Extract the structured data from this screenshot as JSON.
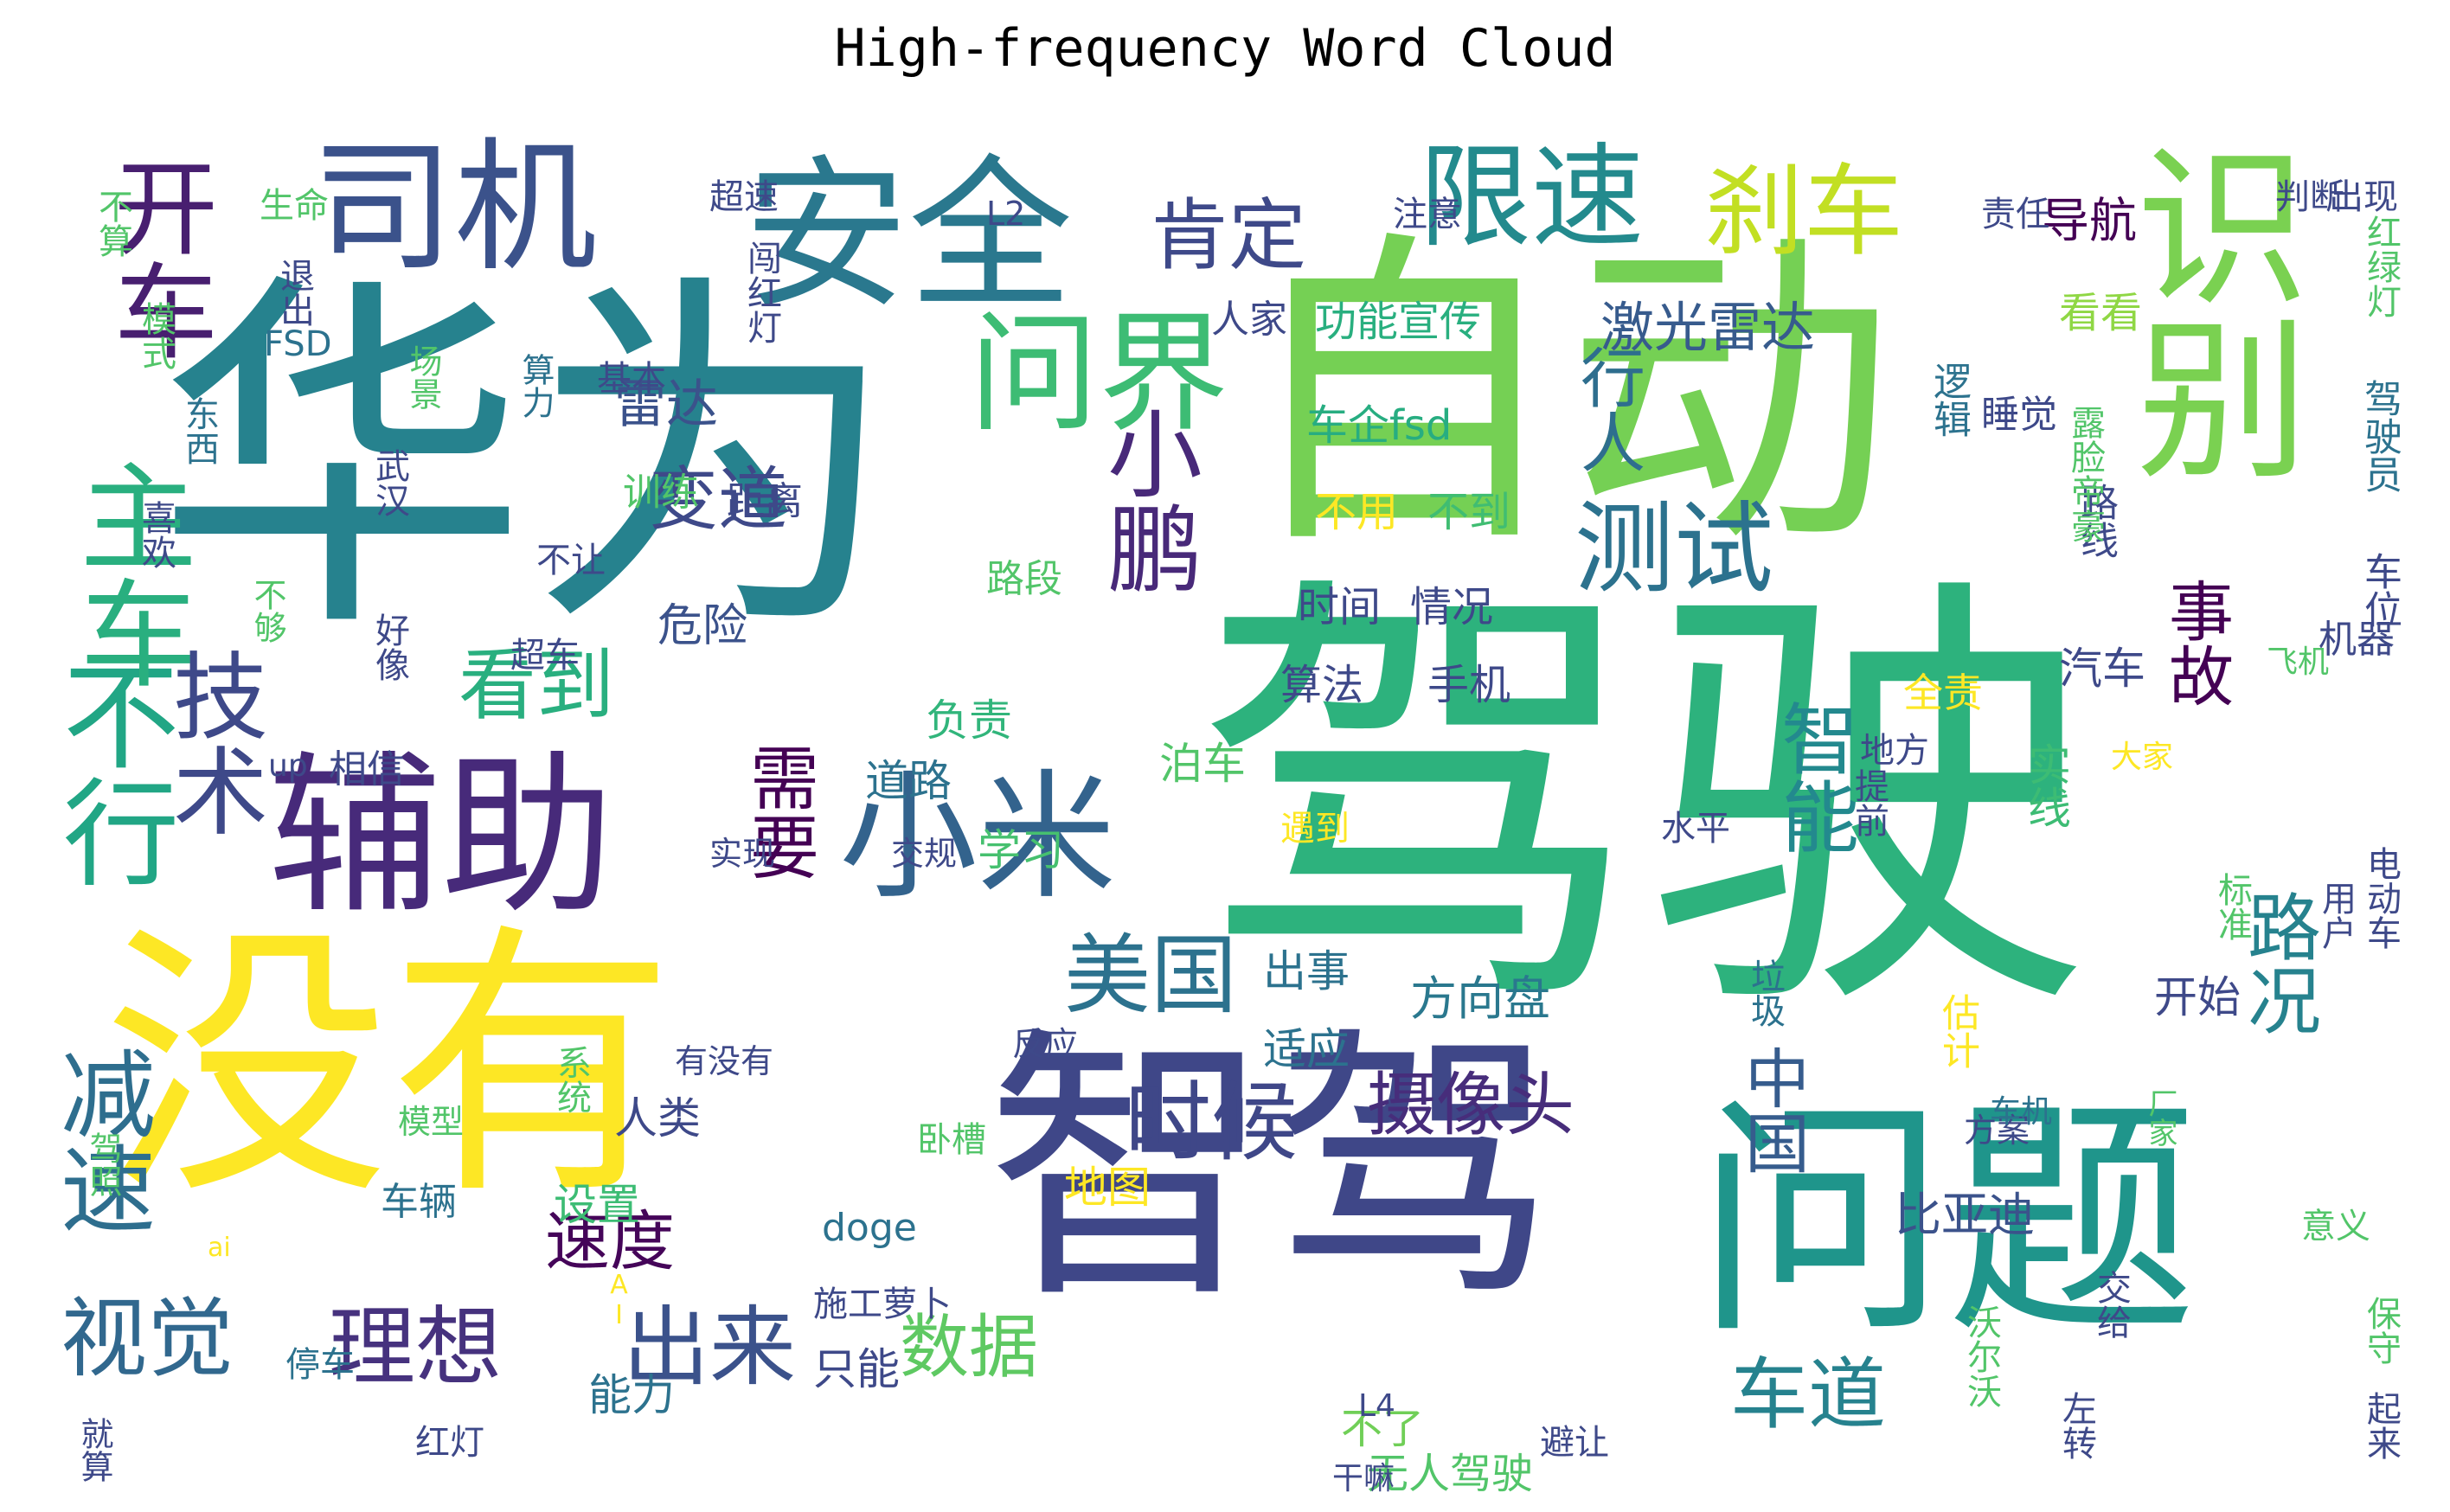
{
  "title": "High-frequency Word Cloud",
  "words": [
    {
      "text": "驾驶",
      "color": "#2db27d"
    },
    {
      "text": "华为",
      "color": "#26828e"
    },
    {
      "text": "自动",
      "color": "#75d054"
    },
    {
      "text": "智驾",
      "color": "#3f4788"
    },
    {
      "text": "没有",
      "color": "#fde725"
    },
    {
      "text": "问题",
      "color": "#1f958b"
    },
    {
      "text": "识别",
      "color": "#7ad151"
    },
    {
      "text": "辅助",
      "color": "#472a7a"
    },
    {
      "text": "安全",
      "color": "#2a788e"
    },
    {
      "text": "司机",
      "color": "#3b528b"
    },
    {
      "text": "小米",
      "color": "#33638d"
    },
    {
      "text": "不行",
      "color": "#21a685"
    },
    {
      "text": "主车",
      "color": "#29af7f"
    },
    {
      "text": "开车",
      "color": "#481f70"
    },
    {
      "text": "问界",
      "color": "#3dbc74"
    },
    {
      "text": "限速",
      "color": "#238a8d"
    },
    {
      "text": "刹车",
      "color": "#c2df23"
    },
    {
      "text": "小鹏",
      "color": "#482979"
    },
    {
      "text": "测试",
      "color": "#2c728e"
    },
    {
      "text": "技术",
      "color": "#3e4989"
    },
    {
      "text": "减速",
      "color": "#2e6e8e"
    },
    {
      "text": "视觉",
      "color": "#31688e"
    },
    {
      "text": "理想",
      "color": "#46327e"
    },
    {
      "text": "出来",
      "color": "#3b528b"
    },
    {
      "text": "美国",
      "color": "#2c728e"
    },
    {
      "text": "时候",
      "color": "#3f4788"
    },
    {
      "text": "看到",
      "color": "#29af7f"
    },
    {
      "text": "肯定",
      "color": "#3e4989"
    },
    {
      "text": "变道",
      "color": "#3e4989"
    },
    {
      "text": "智能",
      "color": "#23898e"
    },
    {
      "text": "需要",
      "color": "#440154"
    },
    {
      "text": "车道",
      "color": "#26828e"
    },
    {
      "text": "摄像头",
      "color": "#472d7b"
    },
    {
      "text": "数据",
      "color": "#5ec962"
    },
    {
      "text": "路况",
      "color": "#26828e"
    },
    {
      "text": "速度",
      "color": "#450559"
    },
    {
      "text": "中国",
      "color": "#365c8d"
    },
    {
      "text": "事故",
      "color": "#440154"
    },
    {
      "text": "行人",
      "color": "#2e6e8e"
    },
    {
      "text": "激光雷达",
      "color": "#375b8d"
    },
    {
      "text": "雷达",
      "color": "#3b528b"
    },
    {
      "text": "导航",
      "color": "#440154"
    },
    {
      "text": "功能宣传",
      "color": "#29af7f"
    },
    {
      "text": "车企fsd",
      "color": "#27ad81"
    },
    {
      "text": "不用",
      "color": "#fde725"
    },
    {
      "text": "不到",
      "color": "#40bd72"
    },
    {
      "text": "时间",
      "color": "#3e4989"
    },
    {
      "text": "情况",
      "color": "#3e4989"
    },
    {
      "text": "算法",
      "color": "#3e4989"
    },
    {
      "text": "手机",
      "color": "#3e4989"
    },
    {
      "text": "方向盘",
      "color": "#2a788e"
    },
    {
      "text": "比亚迪",
      "color": "#3b528b"
    },
    {
      "text": "危险",
      "color": "#3b528b"
    },
    {
      "text": "道路",
      "color": "#2c728e"
    },
    {
      "text": "负责",
      "color": "#31b57b"
    },
    {
      "text": "泊车",
      "color": "#52c569"
    },
    {
      "text": "学习",
      "color": "#46c06f"
    },
    {
      "text": "出事",
      "color": "#2c728e"
    },
    {
      "text": "适应",
      "color": "#2c728e"
    },
    {
      "text": "人类",
      "color": "#3e4989"
    },
    {
      "text": "设置",
      "color": "#3dbc74"
    },
    {
      "text": "能力",
      "color": "#2c728e"
    },
    {
      "text": "只能",
      "color": "#3e4989"
    },
    {
      "text": "无人驾驶",
      "color": "#52c569"
    },
    {
      "text": "不了",
      "color": "#70cf57"
    },
    {
      "text": "汽车",
      "color": "#3e4989"
    },
    {
      "text": "开始",
      "color": "#3e4989"
    },
    {
      "text": "实线",
      "color": "#3dbc74"
    },
    {
      "text": "全责",
      "color": "#fde725"
    },
    {
      "text": "看看",
      "color": "#8fd744"
    },
    {
      "text": "人家",
      "color": "#3e4989"
    },
    {
      "text": "逻辑",
      "color": "#2c728e"
    },
    {
      "text": "睡觉",
      "color": "#3e4989"
    },
    {
      "text": "路线",
      "color": "#3e4989"
    },
    {
      "text": "机器",
      "color": "#3e4989"
    },
    {
      "text": "车位",
      "color": "#3e4989"
    },
    {
      "text": "驾驶员",
      "color": "#2c728e"
    },
    {
      "text": "红绿灯",
      "color": "#52c569"
    },
    {
      "text": "出现",
      "color": "#3e4989"
    },
    {
      "text": "判断",
      "color": "#3e4989"
    },
    {
      "text": "责任",
      "color": "#3e4989"
    },
    {
      "text": "注意",
      "color": "#3e4989"
    },
    {
      "text": "L2",
      "color": "#3e4989"
    },
    {
      "text": "超速",
      "color": "#3e4989"
    },
    {
      "text": "闯红灯",
      "color": "#3e4989"
    },
    {
      "text": "基本",
      "color": "#3e4989"
    },
    {
      "text": "退出",
      "color": "#3e4989"
    },
    {
      "text": "FSD",
      "color": "#2c728e"
    },
    {
      "text": "生命",
      "color": "#52c569"
    },
    {
      "text": "不算",
      "color": "#52c569"
    },
    {
      "text": "模式",
      "color": "#52c569"
    },
    {
      "text": "场景",
      "color": "#52c569"
    },
    {
      "text": "东西",
      "color": "#2c728e"
    },
    {
      "text": "喜欢",
      "color": "#3e4989"
    },
    {
      "text": "武汉",
      "color": "#3e4989"
    },
    {
      "text": "算力",
      "color": "#2c728e"
    },
    {
      "text": "训练",
      "color": "#52c569"
    },
    {
      "text": "距离",
      "color": "#3e4989"
    },
    {
      "text": "不让",
      "color": "#3e4989"
    },
    {
      "text": "路段",
      "color": "#52c569"
    },
    {
      "text": "不够",
      "color": "#52c569"
    },
    {
      "text": "好像",
      "color": "#3e4989"
    },
    {
      "text": "超车",
      "color": "#3e4989"
    },
    {
      "text": "相信",
      "color": "#3e4989"
    },
    {
      "text": "up",
      "color": "#3e4989"
    },
    {
      "text": "实现",
      "color": "#3e4989"
    },
    {
      "text": "交规",
      "color": "#3e4989"
    },
    {
      "text": "有没有",
      "color": "#3e4989"
    },
    {
      "text": "反应",
      "color": "#3e4989"
    },
    {
      "text": "系统",
      "color": "#52c569"
    },
    {
      "text": "模型",
      "color": "#52c569"
    },
    {
      "text": "地图",
      "color": "#fde725"
    },
    {
      "text": "车辆",
      "color": "#2c728e"
    },
    {
      "text": "卧槽",
      "color": "#52c569"
    },
    {
      "text": "驾照",
      "color": "#52c569"
    },
    {
      "text": "ai",
      "color": "#fde725"
    },
    {
      "text": "doge",
      "color": "#2c728e"
    },
    {
      "text": "AI",
      "color": "#fde725"
    },
    {
      "text": "施工萝卜",
      "color": "#3e4989"
    },
    {
      "text": "停车",
      "color": "#2c728e"
    },
    {
      "text": "红灯",
      "color": "#3e4989"
    },
    {
      "text": "就算",
      "color": "#3e4989"
    },
    {
      "text": "L4",
      "color": "#3e4989"
    },
    {
      "text": "干嘛",
      "color": "#3e4989"
    },
    {
      "text": "避让",
      "color": "#3e4989"
    },
    {
      "text": "沃尔沃",
      "color": "#52c569"
    },
    {
      "text": "左转",
      "color": "#3e4989"
    },
    {
      "text": "交给",
      "color": "#3e4989"
    },
    {
      "text": "保守",
      "color": "#52c569"
    },
    {
      "text": "起来",
      "color": "#3e4989"
    },
    {
      "text": "意义",
      "color": "#52c569"
    },
    {
      "text": "方案",
      "color": "#3e4989"
    },
    {
      "text": "车机",
      "color": "#2c728e"
    },
    {
      "text": "厂家",
      "color": "#52c569"
    },
    {
      "text": "垃圾",
      "color": "#2c728e"
    },
    {
      "text": "估计",
      "color": "#fde725"
    },
    {
      "text": "水平",
      "color": "#3e4989"
    },
    {
      "text": "提前",
      "color": "#3e4989"
    },
    {
      "text": "标准",
      "color": "#52c569"
    },
    {
      "text": "用户",
      "color": "#3e4989"
    },
    {
      "text": "电动车",
      "color": "#3e4989"
    },
    {
      "text": "大家",
      "color": "#fde725"
    },
    {
      "text": "遇到",
      "color": "#fde725"
    },
    {
      "text": "地方",
      "color": "#3e4989"
    },
    {
      "text": "飞机",
      "color": "#52c569"
    },
    {
      "text": "露脸帝豪",
      "color": "#52c569"
    }
  ]
}
